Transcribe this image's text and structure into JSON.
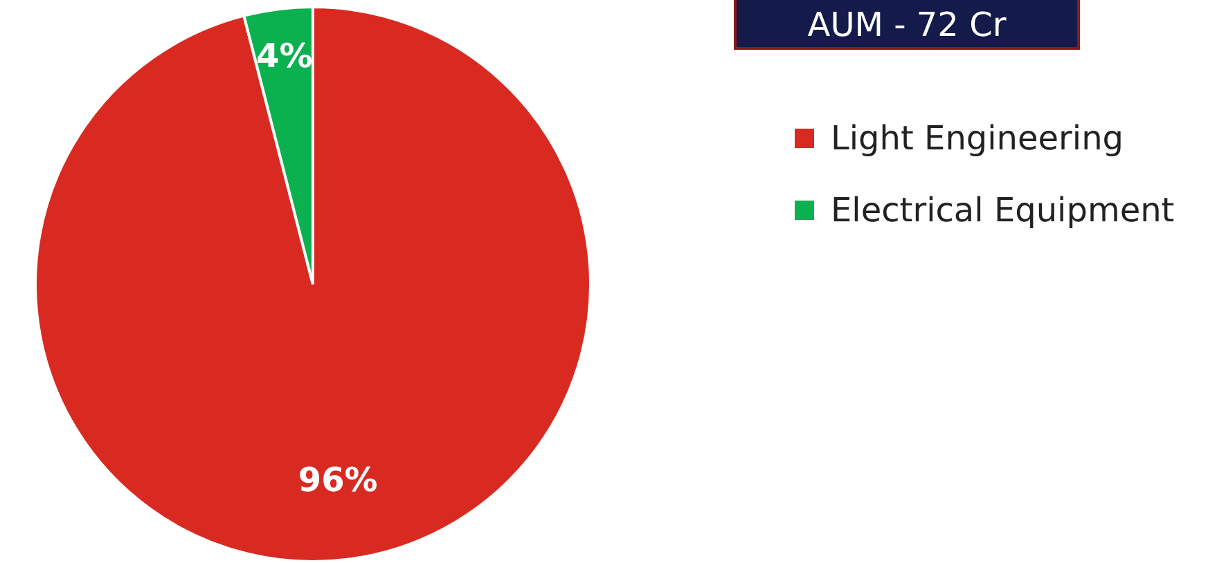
{
  "chart_data": {
    "type": "pie",
    "title": "AUM - 72 Cr",
    "categories": [
      "Light Engineering",
      "Electrical Equipment"
    ],
    "values": [
      96,
      4
    ],
    "colors": [
      "#d92a22",
      "#0bb04f"
    ],
    "value_labels": [
      "96%",
      "4%"
    ],
    "legend": "right"
  }
}
